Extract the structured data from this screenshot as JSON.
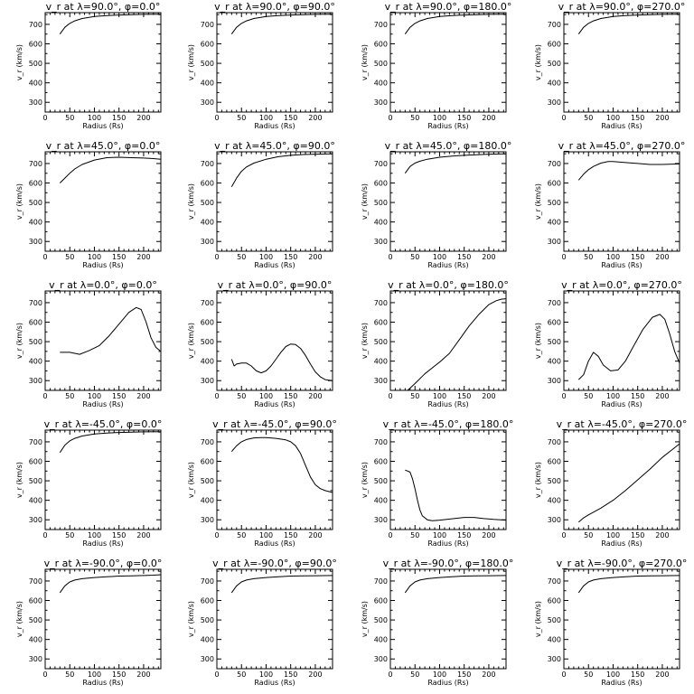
{
  "figure": {
    "x_label": "Radius (Rs)",
    "y_label": "v_r (km/s)"
  },
  "chart_data": [
    {
      "type": "line",
      "title": "v_r at λ=90.0°, φ=0.0°",
      "xlabel": "Radius (Rs)",
      "ylabel": "v_r (km/s)",
      "xlim": [
        0,
        235
      ],
      "ylim": [
        250,
        760
      ],
      "x_ticks": [
        0,
        50,
        100,
        150,
        200
      ],
      "y_ticks": [
        300,
        400,
        500,
        600,
        700
      ],
      "x": [
        30,
        40,
        50,
        60,
        75,
        100,
        125,
        150,
        175,
        200,
        235
      ],
      "y": [
        650,
        685,
        705,
        718,
        730,
        740,
        745,
        748,
        750,
        751,
        752
      ]
    },
    {
      "type": "line",
      "title": "v_r at λ=90.0°, φ=90.0°",
      "xlabel": "Radius (Rs)",
      "ylabel": "v_r (km/s)",
      "xlim": [
        0,
        235
      ],
      "ylim": [
        250,
        760
      ],
      "x_ticks": [
        0,
        50,
        100,
        150,
        200
      ],
      "y_ticks": [
        300,
        400,
        500,
        600,
        700
      ],
      "x": [
        30,
        40,
        50,
        60,
        75,
        100,
        125,
        150,
        175,
        200,
        235
      ],
      "y": [
        650,
        685,
        705,
        718,
        730,
        740,
        745,
        748,
        750,
        751,
        752
      ]
    },
    {
      "type": "line",
      "title": "v_r at λ=90.0°, φ=180.0°",
      "xlabel": "Radius (Rs)",
      "ylabel": "v_r (km/s)",
      "xlim": [
        0,
        235
      ],
      "ylim": [
        250,
        760
      ],
      "x_ticks": [
        0,
        50,
        100,
        150,
        200
      ],
      "y_ticks": [
        300,
        400,
        500,
        600,
        700
      ],
      "x": [
        30,
        40,
        50,
        60,
        75,
        100,
        125,
        150,
        175,
        200,
        235
      ],
      "y": [
        650,
        685,
        705,
        718,
        730,
        740,
        745,
        748,
        750,
        751,
        752
      ]
    },
    {
      "type": "line",
      "title": "v_r at λ=90.0°, φ=270.0°",
      "xlabel": "Radius (Rs)",
      "ylabel": "v_r (km/s)",
      "xlim": [
        0,
        235
      ],
      "ylim": [
        250,
        760
      ],
      "x_ticks": [
        0,
        50,
        100,
        150,
        200
      ],
      "y_ticks": [
        300,
        400,
        500,
        600,
        700
      ],
      "x": [
        30,
        40,
        50,
        60,
        75,
        100,
        125,
        150,
        175,
        200,
        235
      ],
      "y": [
        650,
        685,
        705,
        718,
        730,
        740,
        745,
        748,
        750,
        751,
        752
      ]
    },
    {
      "type": "line",
      "title": "v_r at λ=45.0°, φ=0.0°",
      "xlabel": "Radius (Rs)",
      "ylabel": "v_r (km/s)",
      "xlim": [
        0,
        235
      ],
      "ylim": [
        250,
        760
      ],
      "x_ticks": [
        0,
        50,
        100,
        150,
        200
      ],
      "y_ticks": [
        300,
        400,
        500,
        600,
        700
      ],
      "x": [
        30,
        40,
        50,
        60,
        75,
        100,
        125,
        150,
        175,
        200,
        220,
        235
      ],
      "y": [
        600,
        625,
        650,
        672,
        695,
        718,
        730,
        732,
        730,
        728,
        725,
        722
      ]
    },
    {
      "type": "line",
      "title": "v_r at λ=45.0°, φ=90.0°",
      "xlabel": "Radius (Rs)",
      "ylabel": "v_r (km/s)",
      "xlim": [
        0,
        235
      ],
      "ylim": [
        250,
        760
      ],
      "x_ticks": [
        0,
        50,
        100,
        150,
        200
      ],
      "y_ticks": [
        300,
        400,
        500,
        600,
        700
      ],
      "x": [
        30,
        40,
        50,
        60,
        75,
        100,
        125,
        150,
        175,
        200,
        235
      ],
      "y": [
        580,
        625,
        660,
        682,
        702,
        722,
        735,
        742,
        746,
        748,
        750
      ]
    },
    {
      "type": "line",
      "title": "v_r at λ=45.0°, φ=180.0°",
      "xlabel": "Radius (Rs)",
      "ylabel": "v_r (km/s)",
      "xlim": [
        0,
        235
      ],
      "ylim": [
        250,
        760
      ],
      "x_ticks": [
        0,
        50,
        100,
        150,
        200
      ],
      "y_ticks": [
        300,
        400,
        500,
        600,
        700
      ],
      "x": [
        30,
        40,
        50,
        60,
        75,
        100,
        125,
        150,
        175,
        200,
        235
      ],
      "y": [
        650,
        685,
        702,
        712,
        722,
        732,
        738,
        742,
        745,
        748,
        750
      ]
    },
    {
      "type": "line",
      "title": "v_r at λ=45.0°, φ=270.0°",
      "xlabel": "Radius (Rs)",
      "ylabel": "v_r (km/s)",
      "xlim": [
        0,
        235
      ],
      "ylim": [
        250,
        760
      ],
      "x_ticks": [
        0,
        50,
        100,
        150,
        200
      ],
      "y_ticks": [
        300,
        400,
        500,
        600,
        700
      ],
      "x": [
        30,
        40,
        50,
        60,
        75,
        90,
        100,
        125,
        150,
        175,
        200,
        235
      ],
      "y": [
        615,
        645,
        668,
        685,
        702,
        710,
        710,
        705,
        700,
        695,
        695,
        698
      ]
    },
    {
      "type": "line",
      "title": "v_r at λ=0.0°, φ=0.0°",
      "xlabel": "Radius (Rs)",
      "ylabel": "v_r (km/s)",
      "xlim": [
        0,
        235
      ],
      "ylim": [
        250,
        760
      ],
      "x_ticks": [
        0,
        50,
        100,
        150,
        200
      ],
      "y_ticks": [
        300,
        400,
        500,
        600,
        700
      ],
      "x": [
        30,
        50,
        70,
        90,
        110,
        130,
        150,
        170,
        185,
        195,
        205,
        215,
        225,
        235
      ],
      "y": [
        445,
        445,
        435,
        455,
        480,
        530,
        590,
        650,
        675,
        665,
        600,
        520,
        470,
        450
      ]
    },
    {
      "type": "line",
      "title": "v_r at λ=0.0°, φ=90.0°",
      "xlabel": "Radius (Rs)",
      "ylabel": "v_r (km/s)",
      "xlim": [
        0,
        235
      ],
      "ylim": [
        250,
        760
      ],
      "x_ticks": [
        0,
        50,
        100,
        150,
        200
      ],
      "y_ticks": [
        300,
        400,
        500,
        600,
        700
      ],
      "x": [
        30,
        35,
        40,
        50,
        60,
        70,
        80,
        90,
        100,
        110,
        120,
        130,
        140,
        150,
        160,
        170,
        180,
        190,
        200,
        210,
        220,
        235
      ],
      "y": [
        410,
        375,
        385,
        390,
        390,
        375,
        350,
        340,
        350,
        375,
        410,
        445,
        475,
        488,
        485,
        465,
        430,
        385,
        345,
        320,
        305,
        300
      ]
    },
    {
      "type": "line",
      "title": "v_r at λ=0.0°, φ=180.0°",
      "xlabel": "Radius (Rs)",
      "ylabel": "v_r (km/s)",
      "xlim": [
        0,
        235
      ],
      "ylim": [
        250,
        760
      ],
      "x_ticks": [
        0,
        50,
        100,
        150,
        200
      ],
      "y_ticks": [
        300,
        400,
        500,
        600,
        700
      ],
      "x": [
        35,
        50,
        70,
        90,
        100,
        120,
        140,
        160,
        180,
        200,
        215,
        225,
        235
      ],
      "y": [
        250,
        285,
        335,
        375,
        395,
        440,
        510,
        580,
        640,
        690,
        710,
        718,
        720
      ]
    },
    {
      "type": "line",
      "title": "v_r at λ=0.0°, φ=270.0°",
      "xlabel": "Radius (Rs)",
      "ylabel": "v_r (km/s)",
      "xlim": [
        0,
        235
      ],
      "ylim": [
        250,
        760
      ],
      "x_ticks": [
        0,
        50,
        100,
        150,
        200
      ],
      "y_ticks": [
        300,
        400,
        500,
        600,
        700
      ],
      "x": [
        30,
        40,
        50,
        60,
        70,
        80,
        95,
        110,
        125,
        140,
        160,
        180,
        195,
        205,
        215,
        225,
        235
      ],
      "y": [
        305,
        330,
        400,
        445,
        425,
        380,
        350,
        355,
        400,
        470,
        560,
        625,
        640,
        615,
        540,
        450,
        390
      ]
    },
    {
      "type": "line",
      "title": "v_r at λ=-45.0°, φ=0.0°",
      "xlabel": "Radius (Rs)",
      "ylabel": "v_r (km/s)",
      "xlim": [
        0,
        235
      ],
      "ylim": [
        250,
        760
      ],
      "x_ticks": [
        0,
        50,
        100,
        150,
        200
      ],
      "y_ticks": [
        300,
        400,
        500,
        600,
        700
      ],
      "x": [
        30,
        40,
        50,
        60,
        75,
        100,
        125,
        150,
        175,
        200,
        235
      ],
      "y": [
        645,
        683,
        705,
        718,
        730,
        740,
        745,
        748,
        750,
        751,
        752
      ]
    },
    {
      "type": "line",
      "title": "v_r at λ=-45.0°, φ=90.0°",
      "xlabel": "Radius (Rs)",
      "ylabel": "v_r (km/s)",
      "xlim": [
        0,
        235
      ],
      "ylim": [
        250,
        760
      ],
      "x_ticks": [
        0,
        50,
        100,
        150,
        200
      ],
      "y_ticks": [
        300,
        400,
        500,
        600,
        700
      ],
      "x": [
        30,
        40,
        50,
        60,
        75,
        90,
        100,
        120,
        140,
        150,
        160,
        170,
        180,
        190,
        200,
        210,
        220,
        235
      ],
      "y": [
        650,
        680,
        700,
        712,
        720,
        722,
        722,
        718,
        710,
        700,
        680,
        640,
        580,
        520,
        480,
        460,
        450,
        440
      ]
    },
    {
      "type": "line",
      "title": "v_r at λ=-45.0°, φ=180.0°",
      "xlabel": "Radius (Rs)",
      "ylabel": "v_r (km/s)",
      "xlim": [
        0,
        235
      ],
      "ylim": [
        250,
        760
      ],
      "x_ticks": [
        0,
        50,
        100,
        150,
        200
      ],
      "y_ticks": [
        300,
        400,
        500,
        600,
        700
      ],
      "x": [
        30,
        40,
        45,
        50,
        55,
        60,
        65,
        75,
        85,
        100,
        125,
        150,
        170,
        190,
        210,
        235
      ],
      "y": [
        555,
        545,
        510,
        460,
        400,
        350,
        320,
        300,
        295,
        298,
        305,
        312,
        312,
        306,
        302,
        298
      ]
    },
    {
      "type": "line",
      "title": "v_r at λ=-45.0°, φ=270.0°",
      "xlabel": "Radius (Rs)",
      "ylabel": "v_r (km/s)",
      "xlim": [
        0,
        235
      ],
      "ylim": [
        250,
        760
      ],
      "x_ticks": [
        0,
        50,
        100,
        150,
        200
      ],
      "y_ticks": [
        300,
        400,
        500,
        600,
        700
      ],
      "x": [
        30,
        40,
        50,
        75,
        100,
        125,
        150,
        175,
        200,
        220,
        235
      ],
      "y": [
        288,
        310,
        325,
        360,
        400,
        450,
        505,
        560,
        620,
        660,
        690
      ]
    },
    {
      "type": "line",
      "title": "v_r at λ=-90.0°, φ=0.0°",
      "xlabel": "Radius (Rs)",
      "ylabel": "v_r (km/s)",
      "xlim": [
        0,
        235
      ],
      "ylim": [
        250,
        760
      ],
      "x_ticks": [
        0,
        50,
        100,
        150,
        200
      ],
      "y_ticks": [
        300,
        400,
        500,
        600,
        700
      ],
      "x": [
        30,
        40,
        50,
        60,
        75,
        100,
        125,
        150,
        175,
        200,
        220,
        235
      ],
      "y": [
        640,
        675,
        695,
        705,
        712,
        718,
        722,
        725,
        726,
        728,
        730,
        732
      ]
    },
    {
      "type": "line",
      "title": "v_r at λ=-90.0°, φ=90.0°",
      "xlabel": "Radius (Rs)",
      "ylabel": "v_r (km/s)",
      "xlim": [
        0,
        235
      ],
      "ylim": [
        250,
        760
      ],
      "x_ticks": [
        0,
        50,
        100,
        150,
        200
      ],
      "y_ticks": [
        300,
        400,
        500,
        600,
        700
      ],
      "x": [
        30,
        40,
        50,
        60,
        75,
        100,
        125,
        150,
        175,
        200,
        235
      ],
      "y": [
        640,
        675,
        695,
        705,
        712,
        718,
        722,
        725,
        726,
        727,
        728
      ]
    },
    {
      "type": "line",
      "title": "v_r at λ=-90.0°, φ=180.0°",
      "xlabel": "Radius (Rs)",
      "ylabel": "v_r (km/s)",
      "xlim": [
        0,
        235
      ],
      "ylim": [
        250,
        760
      ],
      "x_ticks": [
        0,
        50,
        100,
        150,
        200
      ],
      "y_ticks": [
        300,
        400,
        500,
        600,
        700
      ],
      "x": [
        30,
        40,
        50,
        60,
        75,
        100,
        125,
        150,
        175,
        200,
        235
      ],
      "y": [
        640,
        675,
        695,
        705,
        712,
        718,
        722,
        725,
        726,
        727,
        728
      ]
    },
    {
      "type": "line",
      "title": "v_r at λ=-90.0°, φ=270.0°",
      "xlabel": "Radius (Rs)",
      "ylabel": "v_r (km/s)",
      "xlim": [
        0,
        235
      ],
      "ylim": [
        250,
        760
      ],
      "x_ticks": [
        0,
        50,
        100,
        150,
        200
      ],
      "y_ticks": [
        300,
        400,
        500,
        600,
        700
      ],
      "x": [
        30,
        40,
        50,
        60,
        75,
        100,
        125,
        150,
        175,
        200,
        235
      ],
      "y": [
        640,
        675,
        695,
        705,
        712,
        718,
        722,
        725,
        726,
        727,
        728
      ]
    }
  ]
}
